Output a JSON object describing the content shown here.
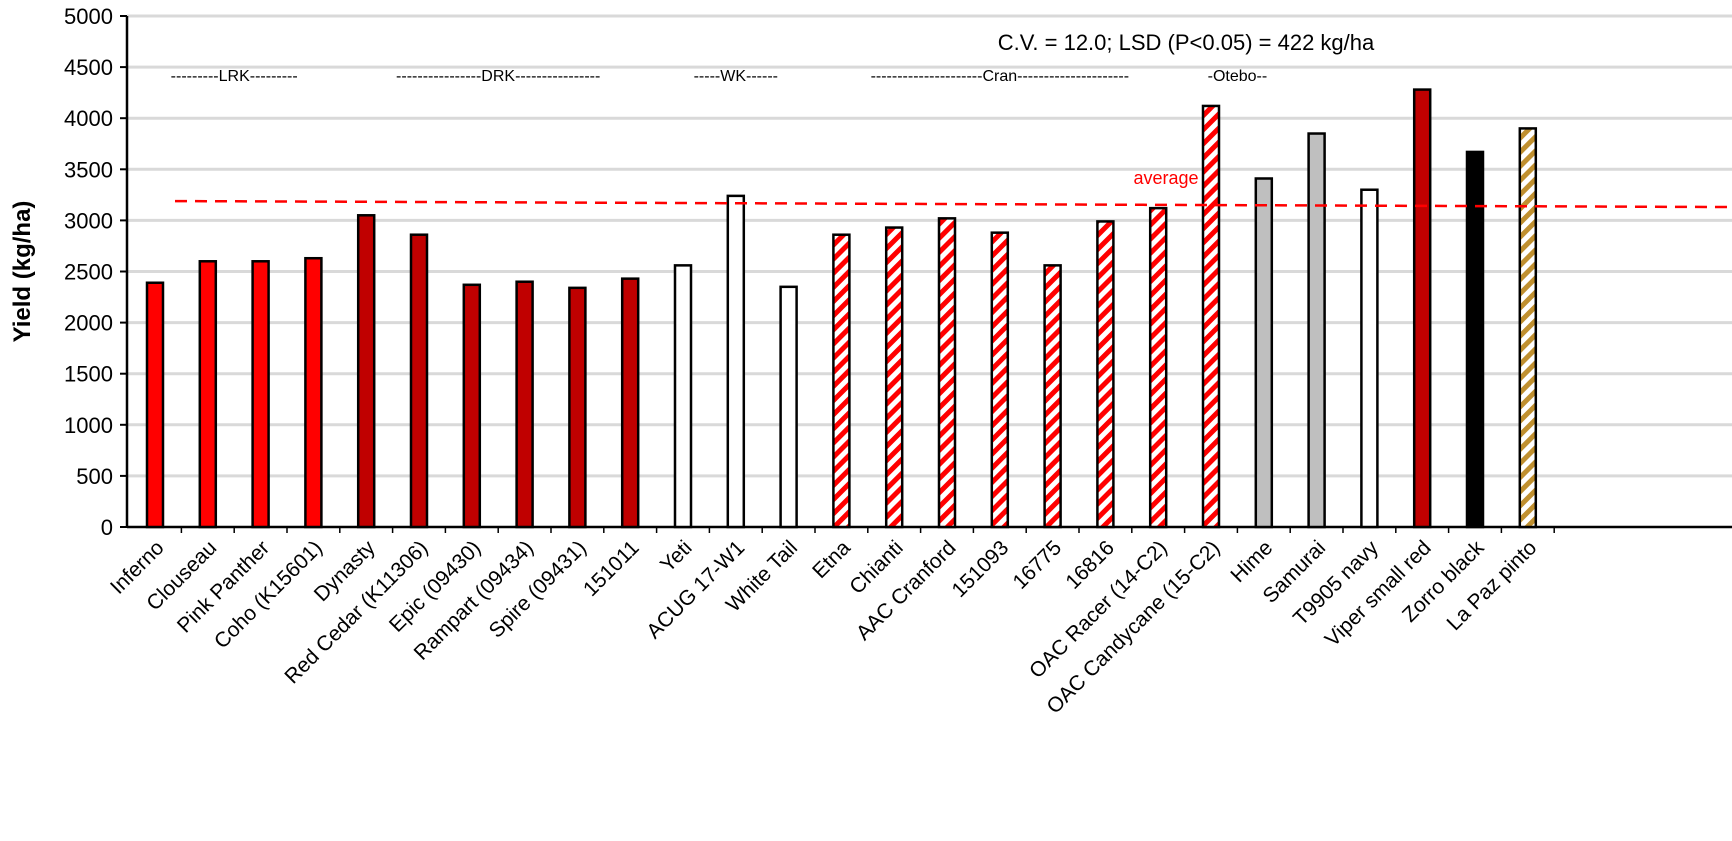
{
  "chart_data": {
    "type": "bar",
    "title": "",
    "xlabel": "",
    "ylabel": "Yield (kg/ha)",
    "ylim": [
      0,
      5000
    ],
    "yticks": [
      0,
      500,
      1000,
      1500,
      2000,
      2500,
      3000,
      3500,
      4000,
      4500,
      5000
    ],
    "grid": true,
    "legend": "none",
    "annotation": "C.V. = 12.0; LSD (P<0.05) = 422 kg/ha",
    "average": {
      "label": "average",
      "value": 3150,
      "color": "#ff0000"
    },
    "groups": [
      {
        "label": "---------LRK---------",
        "from": 0,
        "to": 3
      },
      {
        "label": "----------------DRK----------------",
        "from": 4,
        "to": 9
      },
      {
        "label": "-----WK------",
        "from": 10,
        "to": 12
      },
      {
        "label": "---------------------Cran---------------------",
        "from": 13,
        "to": 19
      },
      {
        "label": "-Otebo--",
        "from": 20,
        "to": 21
      }
    ],
    "categories": [
      "Inferno",
      "Clouseau",
      "Pink Panther",
      "Coho (K15601)",
      "Dynasty",
      "Red Cedar (K11306)",
      "Epic (09430)",
      "Rampart (09434)",
      "Spire (09431)",
      "151011",
      "Yeti",
      "ACUG 17-W1",
      "White Tail",
      "Etna",
      "Chianti",
      "AAC Cranford",
      "151093",
      "16775",
      "16816",
      "OAC Racer (14-C2)",
      "OAC Candycane (15-C2)",
      "Hime",
      "Samurai",
      "T9905 navy",
      "Viper small red",
      "Zorro black",
      "La Paz pinto"
    ],
    "values": [
      2390,
      2600,
      2600,
      2630,
      3050,
      2860,
      2370,
      2400,
      2340,
      2430,
      2560,
      3240,
      2350,
      2860,
      2930,
      3020,
      2880,
      2560,
      2990,
      3120,
      4120,
      3410,
      3850,
      3300,
      4280,
      3670,
      3900
    ],
    "fills": [
      "lrk",
      "lrk",
      "lrk",
      "lrk",
      "drk",
      "drk",
      "drk",
      "drk",
      "drk",
      "drk",
      "white",
      "white",
      "white",
      "cran",
      "cran",
      "cran",
      "cran",
      "cran",
      "cran",
      "cran",
      "cran",
      "gray",
      "gray",
      "white",
      "drk",
      "black",
      "pinto"
    ],
    "colors": {
      "lrk": "#ff0000",
      "drk": "#c00000",
      "white": "#ffffff",
      "cran_stripe": "#ff0000",
      "gray": "#bfbfbf",
      "black": "#000000",
      "pinto_stripe": "#c09030",
      "grid": "#d9d9d9"
    }
  }
}
